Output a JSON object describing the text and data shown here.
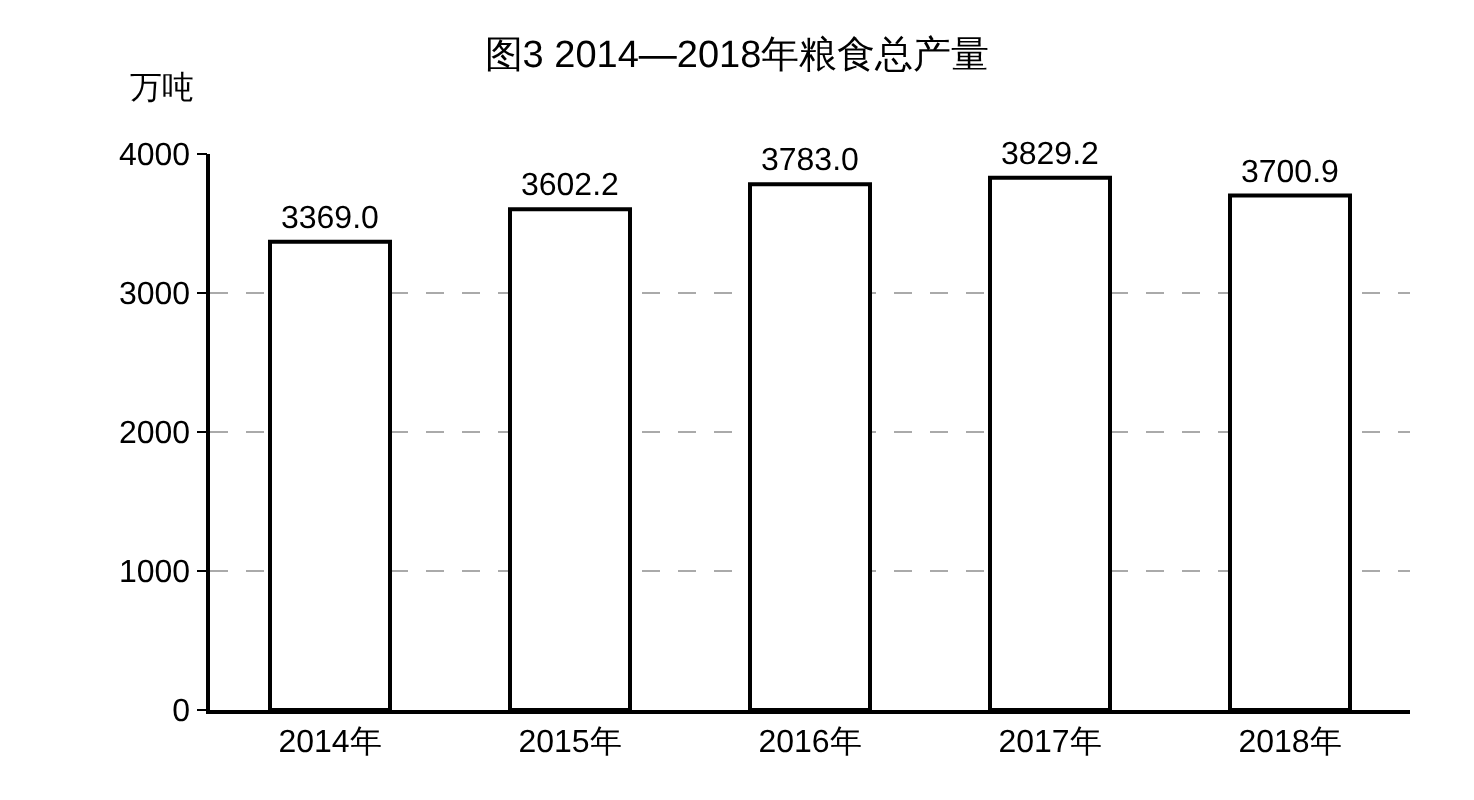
{
  "chart_data": {
    "type": "bar",
    "title": "图3 2014—2018年粮食总产量",
    "ylabel": "万吨",
    "categories": [
      "2014年",
      "2015年",
      "2016年",
      "2017年",
      "2018年"
    ],
    "values": [
      3369.0,
      3602.2,
      3783.0,
      3829.2,
      3700.9
    ],
    "value_labels": [
      "3369.0",
      "3602.2",
      "3783.0",
      "3829.2",
      "3700.9"
    ],
    "color": "#ffffff",
    "ylim": [
      0,
      4000
    ],
    "yticks": [
      0,
      1000,
      2000,
      3000,
      4000
    ],
    "grid": "y"
  }
}
